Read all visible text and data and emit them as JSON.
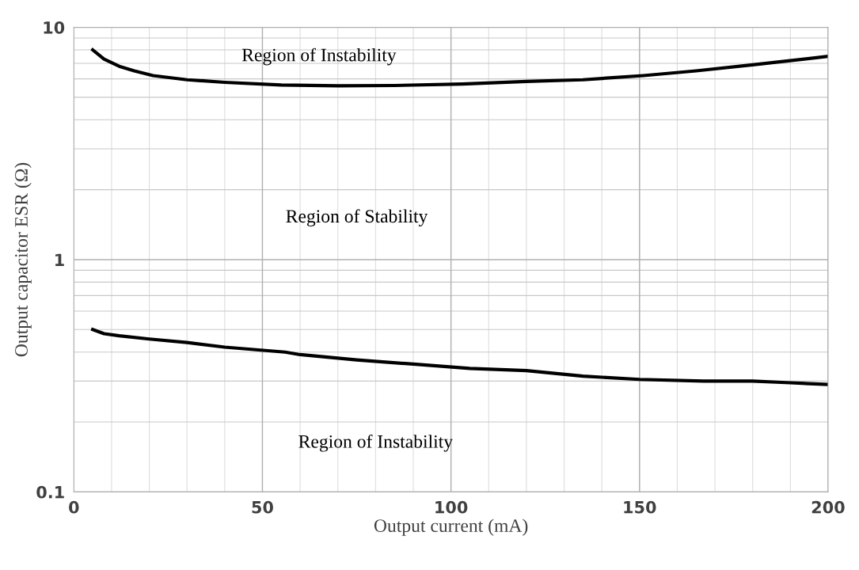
{
  "chart_data": {
    "type": "line",
    "xlabel": "Output current (mA)",
    "ylabel": "Output capacitor ESR (Ω)",
    "log": "y",
    "xlim": [
      0,
      200
    ],
    "xticks": [
      0,
      50,
      100,
      150,
      200
    ],
    "ylim": [
      0.1,
      10
    ],
    "yticks": [
      0.1,
      1,
      10
    ],
    "grid": true,
    "marker": "none",
    "line_style": "solid",
    "series": [
      {
        "color": "#000000",
        "x": [
          5,
          8,
          12,
          16,
          21,
          30,
          40,
          55,
          70,
          85,
          103,
          120,
          135,
          151,
          165,
          180,
          200
        ],
        "values": [
          8.0,
          7.3,
          6.8,
          6.5,
          6.2,
          5.95,
          5.8,
          5.65,
          5.6,
          5.62,
          5.7,
          5.85,
          5.95,
          6.2,
          6.5,
          6.9,
          7.5
        ]
      },
      {
        "color": "#000000",
        "x": [
          5,
          8,
          12,
          20,
          30,
          40,
          56,
          60,
          75,
          90,
          105,
          120,
          135,
          150,
          167,
          180,
          190,
          200
        ],
        "values": [
          0.5,
          0.48,
          0.47,
          0.455,
          0.44,
          0.42,
          0.4,
          0.39,
          0.37,
          0.355,
          0.34,
          0.333,
          0.315,
          0.305,
          0.3,
          0.3,
          0.295,
          0.29
        ]
      }
    ],
    "annotations": [
      "Region of Instability",
      "Region of Stability",
      "Region of Instability"
    ]
  }
}
